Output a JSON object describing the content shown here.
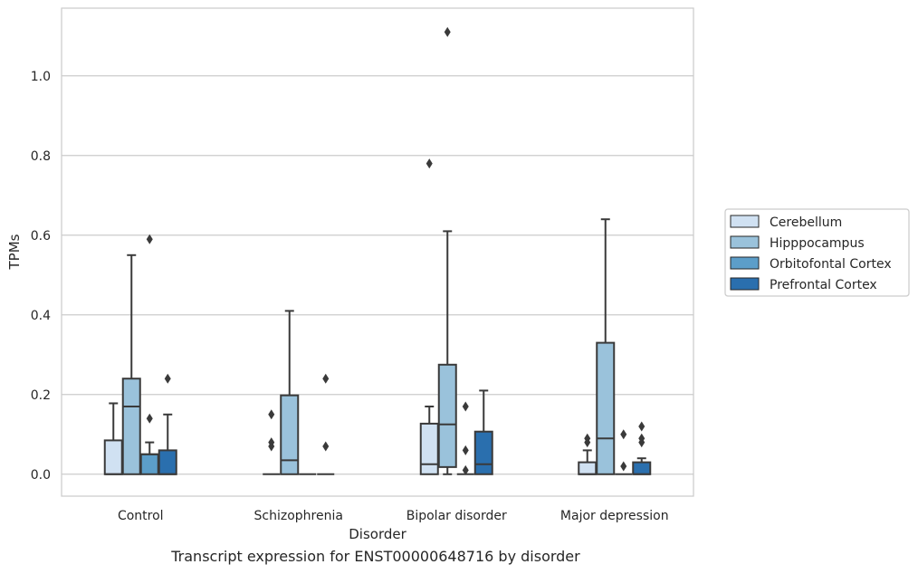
{
  "chart_data": {
    "type": "box",
    "title": "",
    "caption": "Transcript expression for ENST00000648716 by disorder",
    "xlabel": "Disorder",
    "ylabel": "TPMs",
    "ylim": [
      -0.055,
      1.17
    ],
    "yticks": [
      0.0,
      0.2,
      0.4,
      0.6,
      0.8,
      1.0
    ],
    "ytick_labels": [
      "0.0",
      "0.2",
      "0.4",
      "0.6",
      "0.8",
      "1.0"
    ],
    "grid": "horizontal",
    "legend_position": "right",
    "categories": [
      "Control",
      "Schizophrenia",
      "Bipolar disorder",
      "Major depression"
    ],
    "series": [
      {
        "name": "Cerebellum",
        "color": "#d0e1f2",
        "boxes": [
          {
            "whislo": 0.0,
            "q1": 0.0,
            "med": 0.0,
            "q3": 0.085,
            "whishi": 0.178,
            "fliers": []
          },
          {
            "whislo": 0.0,
            "q1": 0.0,
            "med": 0.0,
            "q3": 0.0,
            "whishi": 0.0,
            "fliers": [
              0.07,
              0.08,
              0.15
            ]
          },
          {
            "whislo": 0.0,
            "q1": 0.0,
            "med": 0.025,
            "q3": 0.127,
            "whishi": 0.17,
            "fliers": [
              0.78
            ]
          },
          {
            "whislo": 0.0,
            "q1": 0.0,
            "med": 0.0,
            "q3": 0.03,
            "whishi": 0.06,
            "fliers": [
              0.08,
              0.09
            ]
          }
        ]
      },
      {
        "name": "Hipppocampus",
        "color": "#9ac2db",
        "boxes": [
          {
            "whislo": 0.0,
            "q1": 0.0,
            "med": 0.17,
            "q3": 0.24,
            "whishi": 0.55,
            "fliers": []
          },
          {
            "whislo": 0.0,
            "q1": 0.0,
            "med": 0.035,
            "q3": 0.198,
            "whishi": 0.41,
            "fliers": []
          },
          {
            "whislo": 0.0,
            "q1": 0.018,
            "med": 0.125,
            "q3": 0.275,
            "whishi": 0.61,
            "fliers": [
              1.11
            ]
          },
          {
            "whislo": 0.0,
            "q1": 0.0,
            "med": 0.09,
            "q3": 0.33,
            "whishi": 0.64,
            "fliers": []
          }
        ]
      },
      {
        "name": "Orbitofontal Cortex",
        "color": "#5c9ec9",
        "boxes": [
          {
            "whislo": 0.0,
            "q1": 0.0,
            "med": 0.05,
            "q3": 0.05,
            "whishi": 0.08,
            "fliers": [
              0.14,
              0.59
            ]
          },
          {
            "whislo": 0.0,
            "q1": 0.0,
            "med": 0.0,
            "q3": 0.0,
            "whishi": 0.0,
            "fliers": []
          },
          {
            "whislo": 0.0,
            "q1": 0.0,
            "med": 0.0,
            "q3": 0.0,
            "whishi": 0.0,
            "fliers": [
              0.01,
              0.06,
              0.17
            ]
          },
          {
            "whislo": 0.0,
            "q1": 0.0,
            "med": 0.0,
            "q3": 0.0,
            "whishi": 0.0,
            "fliers": [
              0.02,
              0.1
            ]
          }
        ]
      },
      {
        "name": "Prefrontal Cortex",
        "color": "#2a6fae",
        "boxes": [
          {
            "whislo": 0.0,
            "q1": 0.0,
            "med": 0.0,
            "q3": 0.06,
            "whishi": 0.15,
            "fliers": [
              0.24
            ]
          },
          {
            "whislo": 0.0,
            "q1": 0.0,
            "med": 0.0,
            "q3": 0.0,
            "whishi": 0.0,
            "fliers": [
              0.07,
              0.24
            ]
          },
          {
            "whislo": 0.0,
            "q1": 0.0,
            "med": 0.025,
            "q3": 0.107,
            "whishi": 0.21,
            "fliers": []
          },
          {
            "whislo": 0.0,
            "q1": 0.0,
            "med": 0.0,
            "q3": 0.03,
            "whishi": 0.04,
            "fliers": [
              0.08,
              0.09,
              0.12
            ]
          }
        ]
      }
    ]
  }
}
